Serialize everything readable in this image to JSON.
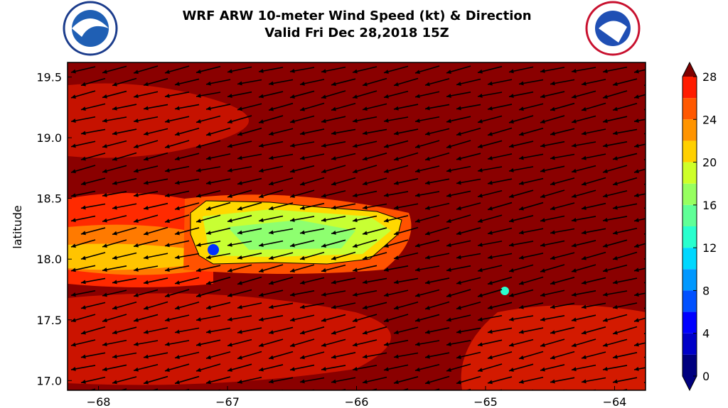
{
  "map": {
    "title": "WRF ARW 10-meter Wind Speed (kt) & Direction",
    "subtitle": "Valid Fri Dec 28,2018 15Z",
    "ylabel": "latitude",
    "xlim": [
      -68.24,
      -63.76
    ],
    "ylim": [
      16.92,
      19.62
    ],
    "xticks": [
      {
        "value": -68,
        "label": "−68"
      },
      {
        "value": -67,
        "label": "−67"
      },
      {
        "value": -66,
        "label": "−66"
      },
      {
        "value": -65,
        "label": "−65"
      },
      {
        "value": -64,
        "label": "−64"
      }
    ],
    "yticks": [
      {
        "value": 17,
        "label": "17.0"
      },
      17.5,
      {
        "value": 18,
        "label": "18.0"
      },
      18.5,
      {
        "value": 19,
        "label": "19.0"
      },
      19.5
    ],
    "colorbar": {
      "lim": [
        0,
        28
      ],
      "ticks": [
        0,
        4,
        8,
        12,
        16,
        20,
        24,
        28
      ],
      "levels": [
        0,
        2,
        4,
        6,
        8,
        10,
        12,
        14,
        16,
        18,
        20,
        22,
        24,
        26,
        28
      ],
      "colors": [
        "#00007f",
        "#0000c8",
        "#0000ff",
        "#0050ff",
        "#0098ff",
        "#00d8ff",
        "#29ffce",
        "#60ff97",
        "#97ff60",
        "#ceff29",
        "#ffd000",
        "#ff9400",
        "#ff5800",
        "#ff1c00",
        "#c20000"
      ],
      "under_color": "#00007f",
      "over_color": "#7f0000"
    }
  }
}
